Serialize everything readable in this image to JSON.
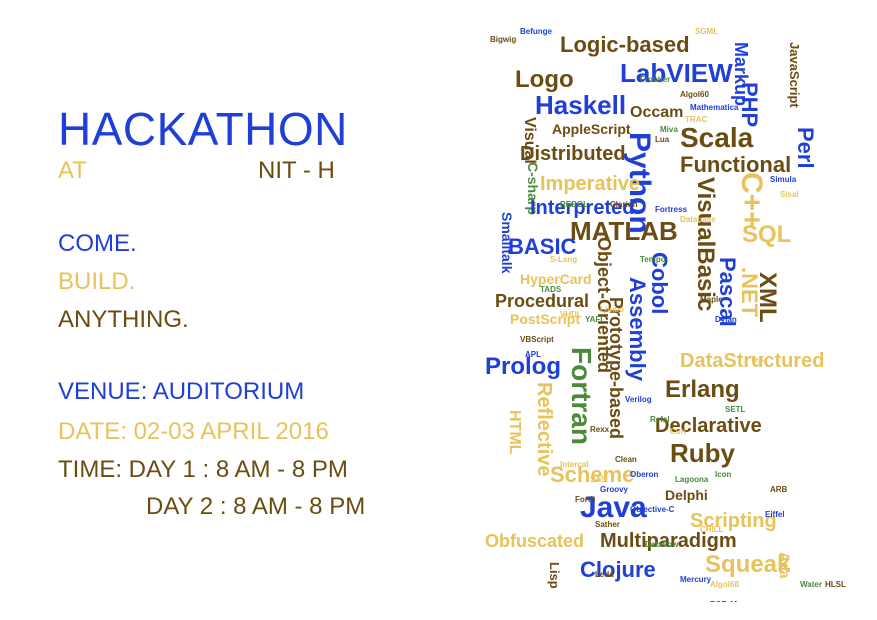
{
  "poster": {
    "title": "HACKATHON",
    "at": "AT",
    "place": "NIT - H",
    "tagline": [
      "COME.",
      "BUILD.",
      "ANYTHING."
    ],
    "venue": "VENUE: AUDITORIUM",
    "date": "DATE: 02-03 APRIL 2016",
    "time_day1": "TIME: DAY 1 : 8 AM - 8 PM",
    "time_day2": "DAY 2 : 8 AM - 8 PM"
  },
  "colors": {
    "blue": "#1f3fd6",
    "gold": "#e8c25a",
    "brown": "#6b4c12",
    "green": "#4a8a3a"
  },
  "word_cloud": [
    {
      "t": "Logic-based",
      "c": "brown",
      "s": 22
    },
    {
      "t": "LabVIEW",
      "c": "blue",
      "s": 26
    },
    {
      "t": "Logo",
      "c": "brown",
      "s": 24
    },
    {
      "t": "Markup",
      "c": "blue",
      "s": 18,
      "v": true
    },
    {
      "t": "JavaScript",
      "c": "brown",
      "s": 13,
      "v": true
    },
    {
      "t": "Haskell",
      "c": "blue",
      "s": 26
    },
    {
      "t": "Occam",
      "c": "brown",
      "s": 16
    },
    {
      "t": "PHP",
      "c": "blue",
      "s": 22,
      "v": true
    },
    {
      "t": "Visual",
      "c": "brown",
      "s": 16,
      "v": true
    },
    {
      "t": "AppleScript",
      "c": "brown",
      "s": 14
    },
    {
      "t": "Python",
      "c": "blue",
      "s": 30,
      "v": true
    },
    {
      "t": "Scala",
      "c": "brown",
      "s": 28
    },
    {
      "t": "Perl",
      "c": "blue",
      "s": 22,
      "v": true
    },
    {
      "t": "Distributed",
      "c": "brown",
      "s": 20
    },
    {
      "t": "Functional",
      "c": "brown",
      "s": 22
    },
    {
      "t": "C-sharp",
      "c": "green",
      "s": 14,
      "v": true
    },
    {
      "t": "Imperative",
      "c": "gold",
      "s": 20
    },
    {
      "t": "C++",
      "c": "gold",
      "s": 30,
      "v": true
    },
    {
      "t": "VisualBasic",
      "c": "brown",
      "s": 24,
      "v": true
    },
    {
      "t": "Interpreted",
      "c": "blue",
      "s": 20
    },
    {
      "t": "Smalltalk",
      "c": "blue",
      "s": 14,
      "v": true
    },
    {
      "t": "MATLAB",
      "c": "brown",
      "s": 26
    },
    {
      "t": "SQL",
      "c": "gold",
      "s": 24
    },
    {
      "t": "BASIC",
      "c": "blue",
      "s": 22
    },
    {
      "t": ".NET",
      "c": "gold",
      "s": 22,
      "v": true
    },
    {
      "t": "Object-Oriented",
      "c": "brown",
      "s": 18,
      "v": true
    },
    {
      "t": "Cobol",
      "c": "blue",
      "s": 22,
      "v": true
    },
    {
      "t": "XML",
      "c": "brown",
      "s": 24,
      "v": true
    },
    {
      "t": "HyperCard",
      "c": "gold",
      "s": 14
    },
    {
      "t": "Pascal",
      "c": "blue",
      "s": 22,
      "v": true
    },
    {
      "t": "Procedural",
      "c": "brown",
      "s": 18
    },
    {
      "t": "Assembly",
      "c": "blue",
      "s": 22,
      "v": true
    },
    {
      "t": "PostScript",
      "c": "gold",
      "s": 14
    },
    {
      "t": "Prolog",
      "c": "blue",
      "s": 24
    },
    {
      "t": "Fortran",
      "c": "green",
      "s": 28,
      "v": true
    },
    {
      "t": "Prototype-based",
      "c": "brown",
      "s": 18,
      "v": true
    },
    {
      "t": "DataStructured",
      "c": "gold",
      "s": 20
    },
    {
      "t": "Erlang",
      "c": "brown",
      "s": 24
    },
    {
      "t": "Reflective",
      "c": "gold",
      "s": 20,
      "v": true
    },
    {
      "t": "HTML",
      "c": "gold",
      "s": 16,
      "v": true
    },
    {
      "t": "Declarative",
      "c": "brown",
      "s": 20
    },
    {
      "t": "Ruby",
      "c": "brown",
      "s": 26
    },
    {
      "t": "Scheme",
      "c": "gold",
      "s": 22
    },
    {
      "t": "Java",
      "c": "blue",
      "s": 30
    },
    {
      "t": "Scripting",
      "c": "gold",
      "s": 20
    },
    {
      "t": "Delphi",
      "c": "brown",
      "s": 14
    },
    {
      "t": "Obfuscated",
      "c": "gold",
      "s": 18
    },
    {
      "t": "Multiparadigm",
      "c": "brown",
      "s": 20
    },
    {
      "t": "Lisp",
      "c": "brown",
      "s": 13,
      "v": true
    },
    {
      "t": "Clojure",
      "c": "blue",
      "s": 22
    },
    {
      "t": "Squeak",
      "c": "gold",
      "s": 24
    },
    {
      "t": "Ada",
      "c": "gold",
      "s": 14,
      "v": true
    }
  ],
  "small_words": [
    "Bigwig",
    "Befunge",
    "SGML",
    "Frontier",
    "Algol60",
    "Mathematica",
    "TRAC",
    "Miva",
    "Lua",
    "Simula",
    "Sisal",
    "REBOL",
    "Clarion",
    "Fortress",
    "Database",
    "Tempo",
    "Maple",
    "Dylan",
    "TeX",
    "SETL",
    "Rexx",
    "Groovy",
    "Intercal",
    "Icon",
    "Forth",
    "Objective-C",
    "CHILL",
    "Dataflow",
    "Leda",
    "Mercury",
    "Algol68",
    "Water",
    "HLSL",
    "POP-11",
    "Limbo",
    "YAFL",
    "VBScript",
    "APL",
    "S-Lang",
    "TADS",
    "Clean",
    "Oberon",
    "SAS",
    "Lagoona",
    "ARB",
    "Eiffel",
    "Curl",
    "Refal",
    "Sather",
    "Verilog",
    "VHDL"
  ]
}
